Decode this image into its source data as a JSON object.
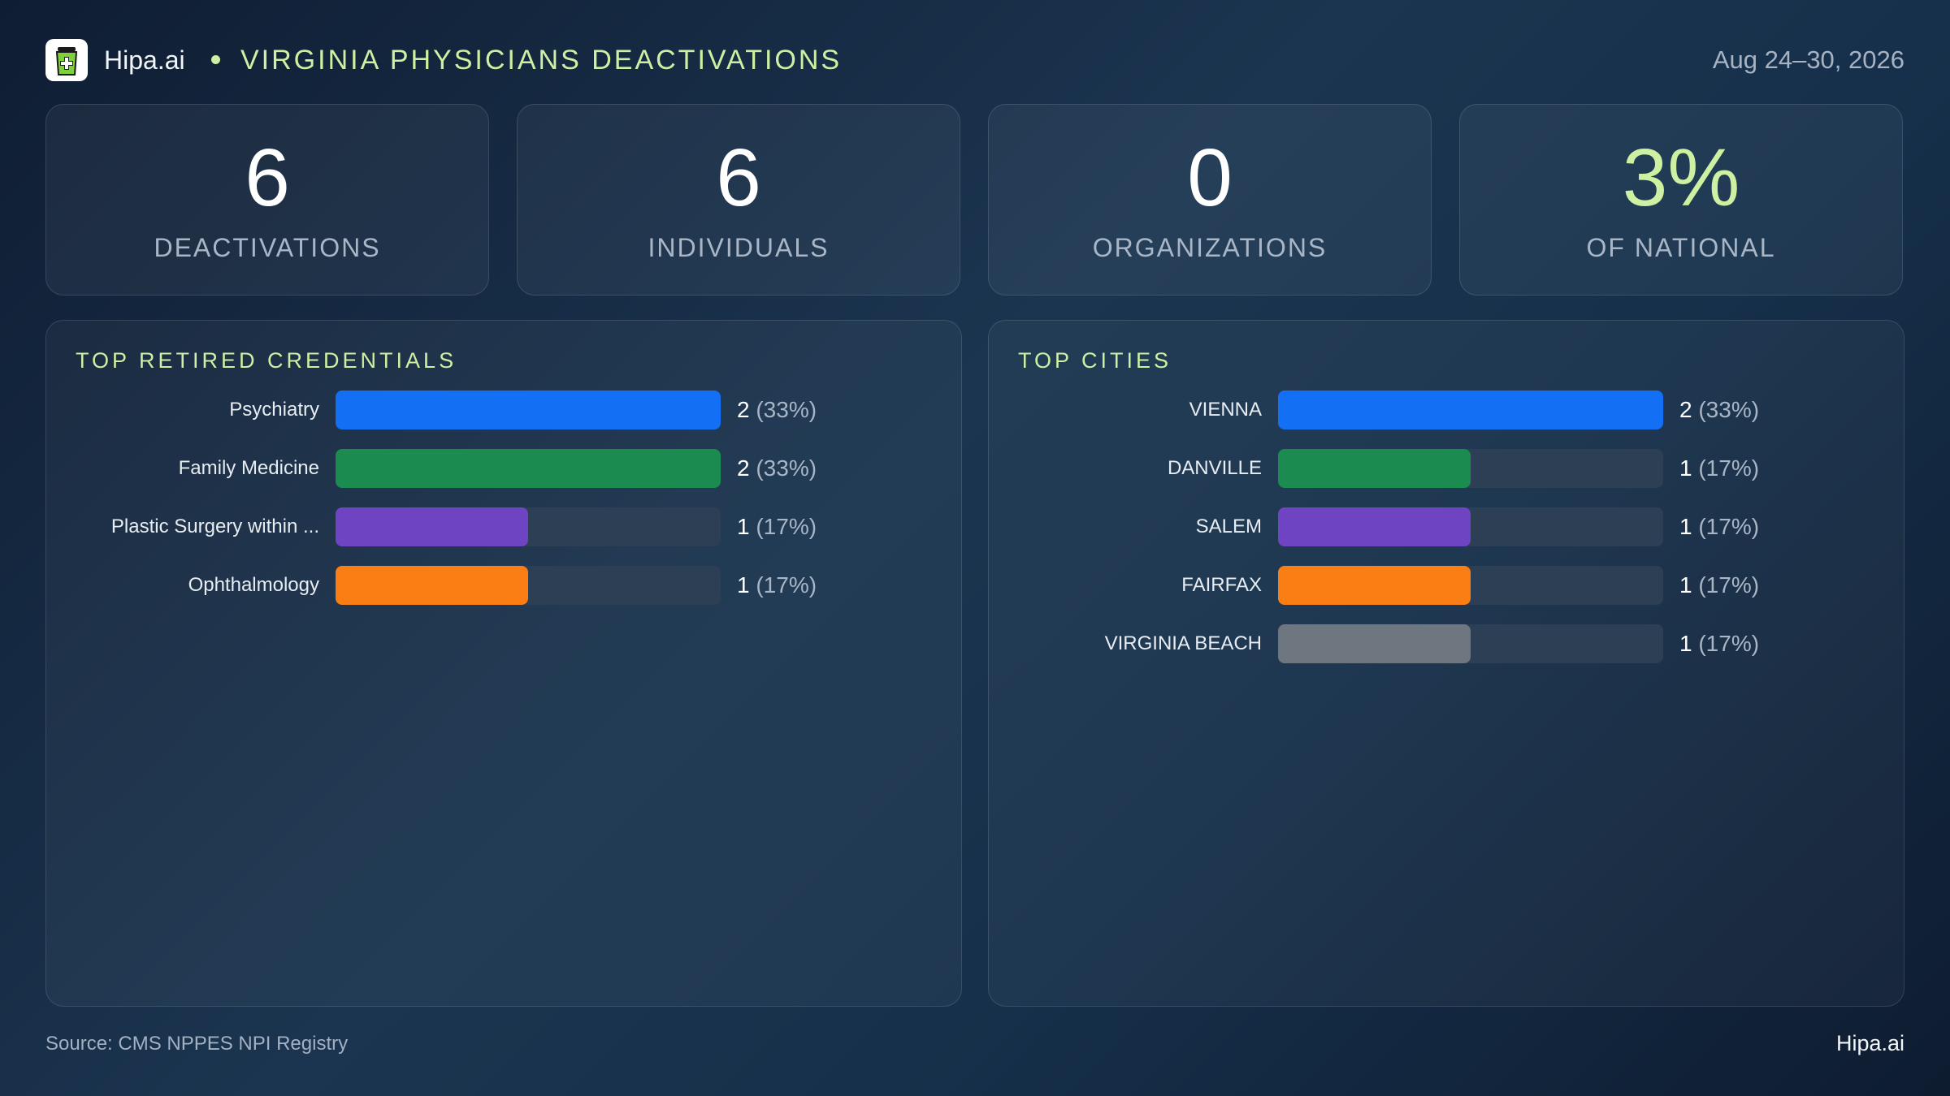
{
  "header": {
    "brand": "Hipa.ai",
    "title": "VIRGINIA PHYSICIANS DEACTIVATIONS",
    "date": "Aug 24–30, 2026",
    "logo_icon": "medical-bag-icon"
  },
  "stats": [
    {
      "value": "6",
      "label": "DEACTIVATIONS"
    },
    {
      "value": "6",
      "label": "INDIVIDUALS"
    },
    {
      "value": "0",
      "label": "ORGANIZATIONS"
    },
    {
      "value": "3%",
      "label": "OF NATIONAL",
      "accent": "#cdf0a2"
    }
  ],
  "chart_data": [
    {
      "type": "bar",
      "title": "TOP RETIRED CREDENTIALS",
      "orientation": "horizontal",
      "categories": [
        "Psychiatry",
        "Family Medicine",
        "Plastic Surgery within ...",
        "Ophthalmology"
      ],
      "values": [
        2,
        2,
        1,
        1
      ],
      "value_labels": [
        "2",
        "2",
        "1",
        "1"
      ],
      "percent_labels": [
        "(33%)",
        "(33%)",
        "(17%)",
        "(17%)"
      ],
      "colors": [
        "#1370f5",
        "#1c8b4f",
        "#6f44c2",
        "#fb7e14"
      ],
      "xlim": [
        0,
        2
      ]
    },
    {
      "type": "bar",
      "title": "TOP CITIES",
      "orientation": "horizontal",
      "categories": [
        "VIENNA",
        "DANVILLE",
        "SALEM",
        "FAIRFAX",
        "VIRGINIA BEACH"
      ],
      "values": [
        2,
        1,
        1,
        1,
        1
      ],
      "value_labels": [
        "2",
        "1",
        "1",
        "1",
        "1"
      ],
      "percent_labels": [
        "(33%)",
        "(17%)",
        "(17%)",
        "(17%)",
        "(17%)"
      ],
      "colors": [
        "#1370f5",
        "#1c8b4f",
        "#6f44c2",
        "#fb7e14",
        "#6e7680"
      ],
      "xlim": [
        0,
        2
      ]
    }
  ],
  "footer": {
    "source": "Source: CMS NPPES NPI Registry",
    "brand": "Hipa.ai"
  }
}
